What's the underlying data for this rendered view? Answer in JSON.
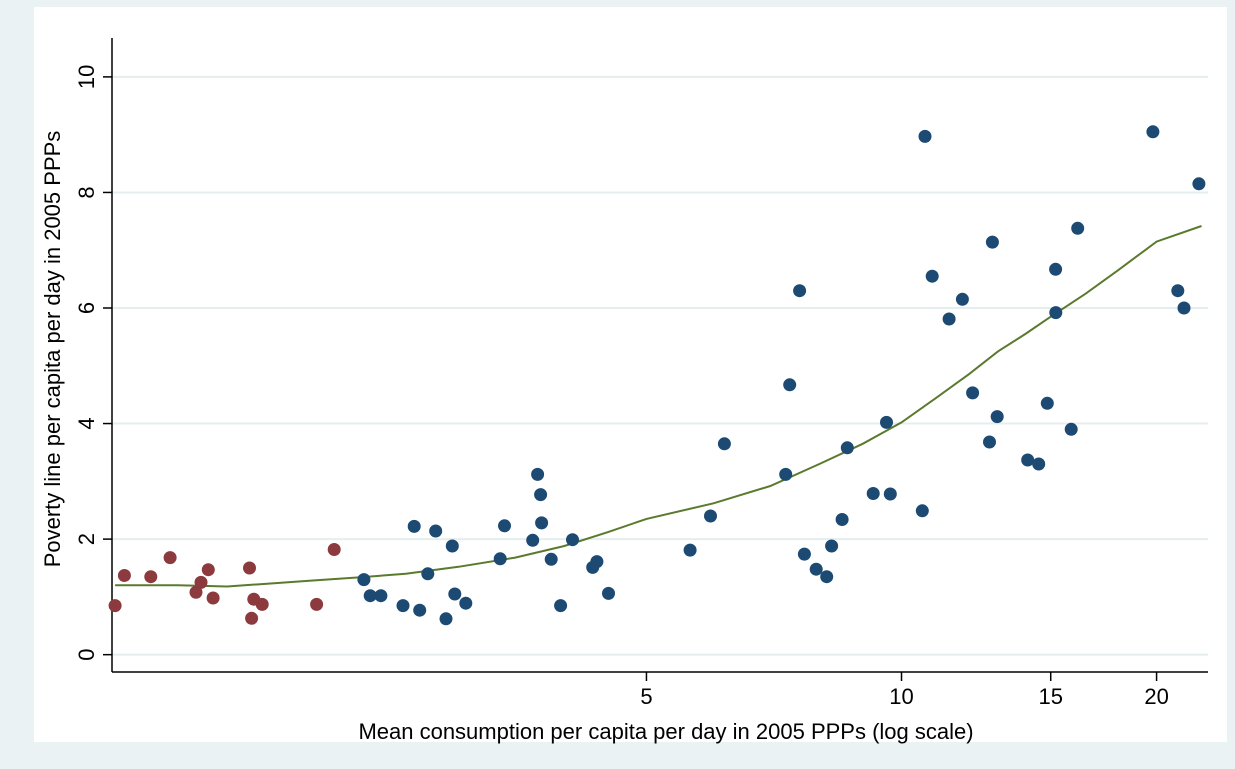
{
  "chart_data": {
    "type": "scatter",
    "xlabel": "Mean consumption per capita per day in 2005 PPPs (log scale)",
    "ylabel": "Poverty line per capita per day in 2005 PPPs",
    "x_scale": "log",
    "xlim": [
      1.17,
      23.0
    ],
    "ylim": [
      -0.3,
      10.5
    ],
    "x_ticks": [
      {
        "value": 5,
        "label": "5"
      },
      {
        "value": 10,
        "label": "10"
      },
      {
        "value": 15,
        "label": "15"
      },
      {
        "value": 20,
        "label": "20"
      }
    ],
    "y_ticks": [
      {
        "value": 0,
        "label": "0"
      },
      {
        "value": 2,
        "label": "2"
      },
      {
        "value": 4,
        "label": "4"
      },
      {
        "value": 6,
        "label": "6"
      },
      {
        "value": 8,
        "label": "8"
      },
      {
        "value": 10,
        "label": "10"
      }
    ],
    "grid": "horizontal",
    "legend": "none",
    "colors": {
      "background": "#eaf2f3",
      "plot_area": "#ffffff",
      "grid": "#e4eeef",
      "red_points": "#8c3a3e",
      "blue_points": "#1c4a73",
      "fit_line": "#5a7a2d"
    },
    "series": [
      {
        "color": "#8c3a3e",
        "points": [
          [
            1.18,
            0.85
          ],
          [
            1.21,
            1.37
          ],
          [
            1.3,
            1.35
          ],
          [
            1.37,
            1.68
          ],
          [
            1.47,
            1.08
          ],
          [
            1.49,
            1.25
          ],
          [
            1.52,
            1.47
          ],
          [
            1.54,
            0.98
          ],
          [
            1.7,
            1.5
          ],
          [
            1.71,
            0.63
          ],
          [
            1.72,
            0.96
          ],
          [
            1.76,
            0.87
          ],
          [
            2.04,
            0.87
          ],
          [
            2.14,
            1.82
          ]
        ]
      },
      {
        "color": "#1c4a73",
        "points": [
          [
            2.32,
            1.3
          ],
          [
            2.36,
            1.02
          ],
          [
            2.43,
            1.02
          ],
          [
            2.58,
            0.85
          ],
          [
            2.7,
            0.77
          ],
          [
            2.66,
            2.22
          ],
          [
            2.76,
            1.4
          ],
          [
            2.82,
            2.14
          ],
          [
            2.9,
            0.62
          ],
          [
            2.95,
            1.88
          ],
          [
            2.97,
            1.05
          ],
          [
            3.06,
            0.89
          ],
          [
            3.36,
            1.66
          ],
          [
            3.4,
            2.23
          ],
          [
            3.67,
            1.98
          ],
          [
            3.72,
            3.12
          ],
          [
            3.75,
            2.77
          ],
          [
            3.76,
            2.28
          ],
          [
            3.86,
            1.65
          ],
          [
            3.96,
            0.85
          ],
          [
            4.09,
            1.99
          ],
          [
            4.32,
            1.51
          ],
          [
            4.37,
            1.61
          ],
          [
            4.51,
            1.06
          ],
          [
            5.63,
            1.81
          ],
          [
            5.95,
            2.4
          ],
          [
            6.18,
            3.65
          ],
          [
            7.3,
            3.12
          ],
          [
            7.38,
            4.67
          ],
          [
            7.58,
            6.3
          ],
          [
            7.68,
            1.74
          ],
          [
            7.93,
            1.48
          ],
          [
            8.16,
            1.35
          ],
          [
            8.27,
            1.88
          ],
          [
            8.51,
            2.34
          ],
          [
            8.63,
            3.58
          ],
          [
            9.26,
            2.79
          ],
          [
            9.6,
            4.02
          ],
          [
            9.7,
            2.78
          ],
          [
            10.58,
            2.49
          ],
          [
            10.66,
            8.97
          ],
          [
            10.87,
            6.55
          ],
          [
            11.38,
            5.81
          ],
          [
            11.8,
            6.15
          ],
          [
            12.13,
            4.53
          ],
          [
            12.8,
            7.14
          ],
          [
            12.7,
            3.68
          ],
          [
            12.97,
            4.12
          ],
          [
            14.09,
            3.37
          ],
          [
            14.52,
            3.3
          ],
          [
            14.86,
            4.35
          ],
          [
            15.2,
            6.67
          ],
          [
            15.21,
            5.92
          ],
          [
            15.86,
            3.9
          ],
          [
            16.14,
            7.38
          ],
          [
            19.8,
            9.05
          ],
          [
            21.19,
            6.3
          ],
          [
            21.55,
            6.0
          ],
          [
            22.44,
            8.15
          ]
        ]
      }
    ],
    "fit_line": [
      [
        1.18,
        1.2
      ],
      [
        1.4,
        1.2
      ],
      [
        1.6,
        1.18
      ],
      [
        1.75,
        1.22
      ],
      [
        2.0,
        1.28
      ],
      [
        2.3,
        1.34
      ],
      [
        2.6,
        1.4
      ],
      [
        3.0,
        1.52
      ],
      [
        3.5,
        1.68
      ],
      [
        4.0,
        1.88
      ],
      [
        4.5,
        2.12
      ],
      [
        5.0,
        2.35
      ],
      [
        6.0,
        2.62
      ],
      [
        7.0,
        2.92
      ],
      [
        8.0,
        3.3
      ],
      [
        9.0,
        3.65
      ],
      [
        10.0,
        4.02
      ],
      [
        11.0,
        4.45
      ],
      [
        12.0,
        4.85
      ],
      [
        13.0,
        5.25
      ],
      [
        14.0,
        5.55
      ],
      [
        15.0,
        5.85
      ],
      [
        16.5,
        6.25
      ],
      [
        18.0,
        6.65
      ],
      [
        20.0,
        7.15
      ],
      [
        22.6,
        7.42
      ]
    ]
  }
}
